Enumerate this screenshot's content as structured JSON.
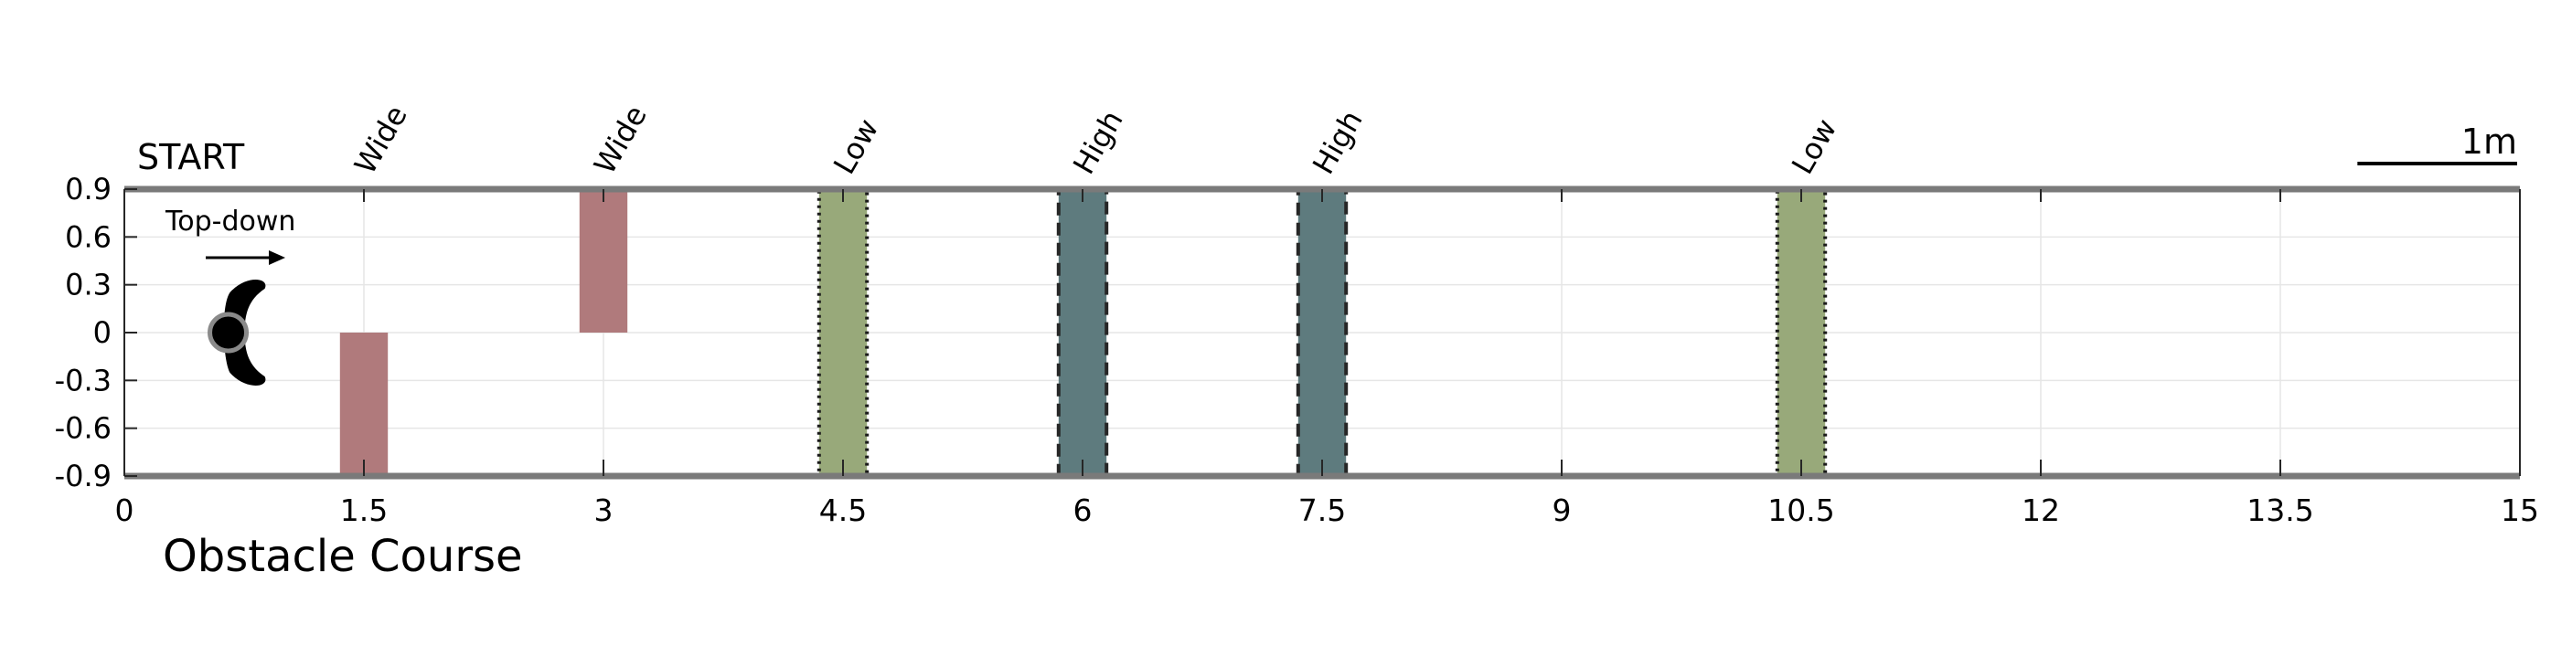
{
  "chart_data": {
    "type": "bar",
    "title": "",
    "xlabel": "Obstacle Course",
    "ylabel": "",
    "xlim": [
      0,
      15
    ],
    "ylim": [
      -0.9,
      0.9
    ],
    "xticks": [
      0,
      1.5,
      3,
      4.5,
      6,
      7.5,
      9,
      10.5,
      12,
      13.5,
      15
    ],
    "xtick_labels": [
      "0",
      "1.5",
      "3",
      "4.5",
      "6",
      "7.5",
      "9",
      "10.5",
      "12",
      "13.5",
      "15"
    ],
    "yticks": [
      0.9,
      0.6,
      0.3,
      0,
      -0.3,
      -0.6,
      -0.9
    ],
    "ytick_labels": [
      "0.9",
      "0.6",
      "0.3",
      "0",
      "-0.3",
      "-0.6",
      "-0.9"
    ],
    "grid": true,
    "start_label": "START",
    "scale_bar_label": "1m",
    "scale_bar_length": 1,
    "robot": {
      "label": "Top-down",
      "x": 0.65,
      "y": 0
    },
    "obstacles": [
      {
        "label": "Wide",
        "x0": 1.35,
        "x1": 1.65,
        "y0": -0.9,
        "y1": 0,
        "color": "#b07a7c",
        "border": "none"
      },
      {
        "label": "Wide",
        "x0": 2.85,
        "x1": 3.15,
        "y0": 0,
        "y1": 0.9,
        "color": "#b07a7c",
        "border": "none"
      },
      {
        "label": "Low",
        "x0": 4.35,
        "x1": 4.65,
        "y0": -0.9,
        "y1": 0.9,
        "color": "#98a97a",
        "border": "dotted"
      },
      {
        "label": "High",
        "x0": 5.85,
        "x1": 6.15,
        "y0": -0.9,
        "y1": 0.9,
        "color": "#5e7b7e",
        "border": "dashed"
      },
      {
        "label": "High",
        "x0": 7.35,
        "x1": 7.65,
        "y0": -0.9,
        "y1": 0.9,
        "color": "#5e7b7e",
        "border": "dashed"
      },
      {
        "label": "Low",
        "x0": 10.35,
        "x1": 10.65,
        "y0": -0.9,
        "y1": 0.9,
        "color": "#98a97a",
        "border": "dotted"
      }
    ],
    "colors": {
      "wall": "#7a7a7a",
      "grid": "#e6e6e6",
      "axis": "#262626"
    }
  }
}
